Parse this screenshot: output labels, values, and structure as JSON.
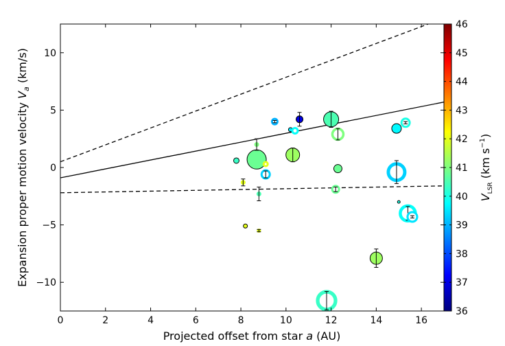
{
  "chart_data": {
    "type": "scatter",
    "xlabel": "Projected offset from star a (AU)",
    "xlabel_parts": [
      "Projected offset from star ",
      "a",
      " (AU)"
    ],
    "ylabel_parts": [
      "Expansion proper motion velocity ",
      "V",
      "a",
      " (km/s)"
    ],
    "xlim": [
      0,
      17
    ],
    "ylim": [
      -12.5,
      12.5
    ],
    "xticks": [
      0,
      2,
      4,
      6,
      8,
      10,
      12,
      14,
      16
    ],
    "yticks": [
      -10,
      -5,
      0,
      5,
      10
    ],
    "ytick_labels": [
      "−10",
      "−5",
      "0",
      "5",
      "10"
    ],
    "colorbar": {
      "min": 36,
      "max": 46,
      "ticks": [
        36,
        37,
        38,
        39,
        40,
        41,
        42,
        43,
        44,
        45,
        46
      ],
      "label_parts": [
        "V",
        "LSR",
        " (km s",
        "−1",
        ")"
      ],
      "colors": [
        "#00007f",
        "#0000ff",
        "#007fff",
        "#00ffff",
        "#7fff7f",
        "#ffff00",
        "#ff7f00",
        "#ff0000",
        "#7f0000"
      ]
    },
    "lines": [
      {
        "name": "fit",
        "style": "solid",
        "x": [
          0,
          17
        ],
        "y": [
          -0.9,
          5.7
        ]
      },
      {
        "name": "upper-bound",
        "style": "dashed",
        "x": [
          0,
          16.3
        ],
        "y": [
          0.5,
          12.5
        ]
      },
      {
        "name": "lower-bound",
        "style": "dashed",
        "x": [
          0,
          17
        ],
        "y": [
          -2.2,
          -1.6
        ]
      }
    ],
    "points": [
      {
        "x": 7.8,
        "y": 0.6,
        "v": 40.3,
        "size": 4,
        "ring": false,
        "err": 0
      },
      {
        "x": 8.7,
        "y": 0.7,
        "v": 40.8,
        "size": 14,
        "ring": false,
        "err": 0
      },
      {
        "x": 8.7,
        "y": 2.0,
        "v": 41.0,
        "size": 4,
        "ring": true,
        "err": 0.5
      },
      {
        "x": 9.1,
        "y": 0.3,
        "v": 42.0,
        "size": 5,
        "ring": true,
        "err": 0
      },
      {
        "x": 9.1,
        "y": -0.6,
        "v": 39.3,
        "size": 8,
        "ring": true,
        "err": 0.3
      },
      {
        "x": 9.5,
        "y": 4.0,
        "v": 39.0,
        "size": 6,
        "ring": true,
        "err": 0.1
      },
      {
        "x": 10.2,
        "y": 3.3,
        "v": 39.5,
        "size": 3,
        "ring": false,
        "err": 0
      },
      {
        "x": 10.4,
        "y": 3.2,
        "v": 39.8,
        "size": 6,
        "ring": true,
        "err": 0
      },
      {
        "x": 10.6,
        "y": 4.2,
        "v": 37.0,
        "size": 5,
        "ring": false,
        "err": 0.6
      },
      {
        "x": 10.3,
        "y": 1.1,
        "v": 41.3,
        "size": 10,
        "ring": false,
        "err": 0.6
      },
      {
        "x": 8.1,
        "y": -1.3,
        "v": 42.0,
        "size": 4,
        "ring": true,
        "err": 0.3
      },
      {
        "x": 8.8,
        "y": -2.3,
        "v": 40.5,
        "size": 4,
        "ring": true,
        "err": 0.6
      },
      {
        "x": 8.2,
        "y": -5.1,
        "v": 42.0,
        "size": 3,
        "ring": false,
        "err": 0
      },
      {
        "x": 8.8,
        "y": -5.5,
        "v": 42.0,
        "size": 3,
        "ring": true,
        "err": 0.1
      },
      {
        "x": 12.0,
        "y": 4.2,
        "v": 40.5,
        "size": 11,
        "ring": false,
        "err": 0.7
      },
      {
        "x": 12.3,
        "y": 2.9,
        "v": 41.0,
        "size": 10,
        "ring": true,
        "err": 0.5
      },
      {
        "x": 12.3,
        "y": -0.1,
        "v": 40.8,
        "size": 6,
        "ring": false,
        "err": 0
      },
      {
        "x": 12.2,
        "y": -1.9,
        "v": 40.8,
        "size": 7,
        "ring": true,
        "err": 0.2
      },
      {
        "x": 11.8,
        "y": -11.6,
        "v": 40.3,
        "size": 15,
        "ring": true,
        "err": 0.8
      },
      {
        "x": 14.0,
        "y": -7.9,
        "v": 41.3,
        "size": 9,
        "ring": false,
        "err": 0.8
      },
      {
        "x": 14.9,
        "y": -0.4,
        "v": 39.3,
        "size": 14,
        "ring": true,
        "err": 1.0
      },
      {
        "x": 14.9,
        "y": 3.4,
        "v": 39.7,
        "size": 7,
        "ring": false,
        "err": 0
      },
      {
        "x": 15.3,
        "y": 3.9,
        "v": 40.0,
        "size": 8,
        "ring": true,
        "err": 0.1
      },
      {
        "x": 15.0,
        "y": -3.0,
        "v": 40.0,
        "size": 2,
        "ring": false,
        "err": 0
      },
      {
        "x": 15.4,
        "y": -4.0,
        "v": 39.8,
        "size": 13,
        "ring": true,
        "err": 0.6
      },
      {
        "x": 15.6,
        "y": -4.3,
        "v": 39.5,
        "size": 9,
        "ring": true,
        "err": 0.1
      }
    ]
  }
}
